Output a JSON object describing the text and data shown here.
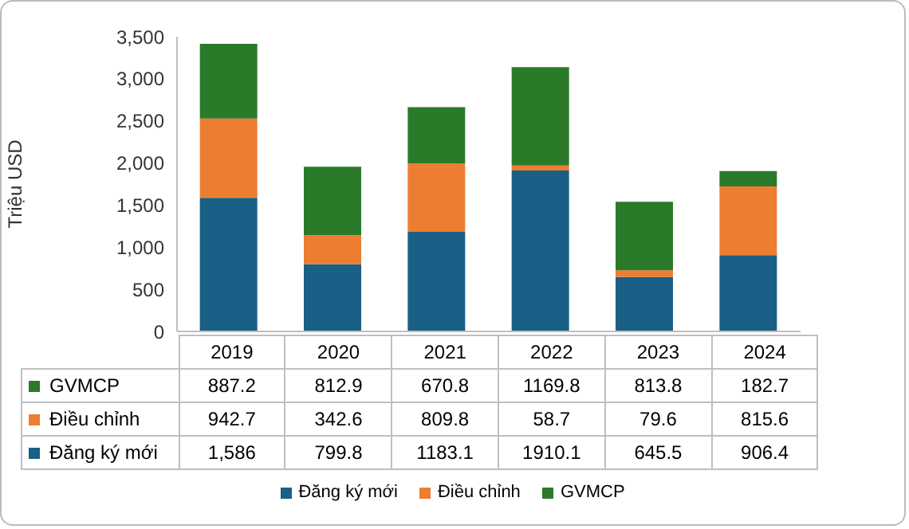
{
  "chart_data": {
    "type": "bar",
    "stacked": true,
    "ylabel": "Triệu USD",
    "categories": [
      "2019",
      "2020",
      "2021",
      "2022",
      "2023",
      "2024"
    ],
    "ylim": [
      0,
      3500
    ],
    "yticks": [
      {
        "value": 0,
        "label": "0"
      },
      {
        "value": 500,
        "label": "500"
      },
      {
        "value": 1000,
        "label": "1,000"
      },
      {
        "value": 1500,
        "label": "1,500"
      },
      {
        "value": 2000,
        "label": "2,000"
      },
      {
        "value": 2500,
        "label": "2,500"
      },
      {
        "value": 3000,
        "label": "3,000"
      },
      {
        "value": 3500,
        "label": "3,500"
      }
    ],
    "legend": "bottom",
    "series": [
      {
        "name": "Đăng ký mới",
        "color": "#1a5f85",
        "values": [
          1586,
          799.8,
          1183.1,
          1910.1,
          645.5,
          906.4
        ],
        "value_labels": [
          "1,586",
          "799.8",
          "1183.1",
          "1910.1",
          "645.5",
          "906.4"
        ]
      },
      {
        "name": "Điều chỉnh",
        "color": "#ed7d31",
        "values": [
          942.7,
          342.6,
          809.8,
          58.7,
          79.6,
          815.6
        ],
        "value_labels": [
          "942.7",
          "342.6",
          "809.8",
          "58.7",
          "79.6",
          "815.6"
        ]
      },
      {
        "name": "GVMCP",
        "color": "#2a7a2a",
        "values": [
          887.2,
          812.9,
          670.8,
          1169.8,
          813.8,
          182.7
        ],
        "value_labels": [
          "887.2",
          "812.9",
          "670.8",
          "1169.8",
          "813.8",
          "182.7"
        ]
      }
    ]
  }
}
